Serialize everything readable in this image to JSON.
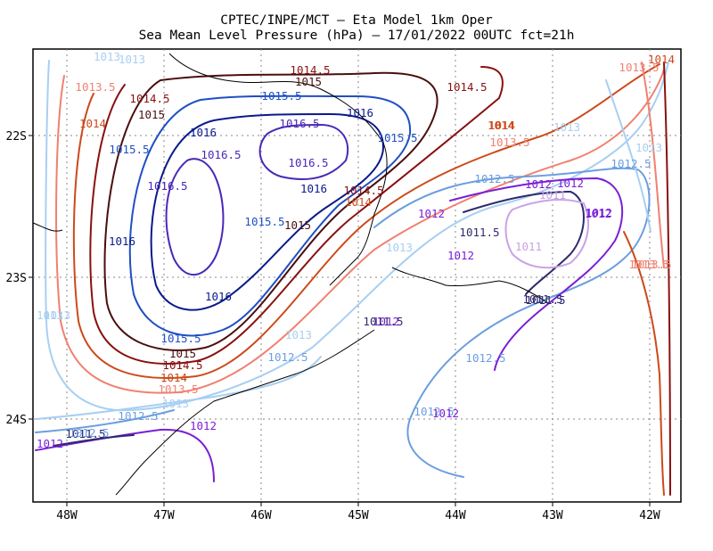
{
  "title_line1": "CPTEC/INPE/MCT –  Eta Model 1km Oper",
  "title_line2": "Sea Mean Level Pressure (hPa) – 17/01/2022 00UTC fct=21h",
  "x_ticks": [
    "48W",
    "47W",
    "46W",
    "45W",
    "44W",
    "43W",
    "42W"
  ],
  "y_ticks": [
    "22S",
    "23S",
    "24S"
  ],
  "colors": {
    "1011": "#c9a3e6",
    "1011.5": "#2e2a6e",
    "1012": "#7a1fd6",
    "1012.5": "#6b9ee0",
    "1013": "#a8cff2",
    "1013.5": "#f08070",
    "1014": "#cc4a1a",
    "1014.5": "#8a1010",
    "1015": "#4a0f0f",
    "1015.5": "#1f4fc4",
    "1016": "#0a1a8a",
    "1016.5": "#4a28b8",
    "coast": "#000000",
    "grid": "#888888"
  },
  "contour_labels": [
    {
      "text": "1013",
      "level": "1013"
    },
    {
      "text": "1014.5",
      "level": "1014.5"
    },
    {
      "text": "1015",
      "level": "1015"
    },
    {
      "text": "1013.5",
      "level": "1013.5"
    },
    {
      "text": "1014.5",
      "level": "1014.5"
    },
    {
      "text": "1015.5",
      "level": "1015.5"
    },
    {
      "text": "1015",
      "level": "1015"
    },
    {
      "text": "1016",
      "level": "1016"
    },
    {
      "text": "1014",
      "level": "1014"
    },
    {
      "text": "1016.5",
      "level": "1016.5"
    },
    {
      "text": "1016",
      "level": "1016"
    },
    {
      "text": "1015.5",
      "level": "1015.5"
    },
    {
      "text": "1015.5",
      "level": "1015.5"
    },
    {
      "text": "1016.5",
      "level": "1016.5"
    },
    {
      "text": "1016.5",
      "level": "1016.5"
    },
    {
      "text": "1016",
      "level": "1016"
    },
    {
      "text": "1014.5",
      "level": "1014.5"
    },
    {
      "text": "1014",
      "level": "1014"
    },
    {
      "text": "1015.5",
      "level": "1015.5"
    },
    {
      "text": "1015",
      "level": "1015"
    },
    {
      "text": "1016.5",
      "level": "1016.5"
    },
    {
      "text": "1016",
      "level": "1016"
    },
    {
      "text": "1016",
      "level": "1016"
    },
    {
      "text": "1015.5",
      "level": "1015.5"
    },
    {
      "text": "1015",
      "level": "1015"
    },
    {
      "text": "1014.5",
      "level": "1014.5"
    },
    {
      "text": "1014",
      "level": "1014"
    },
    {
      "text": "1013.5",
      "level": "1013.5"
    },
    {
      "text": "1013",
      "level": "1013"
    },
    {
      "text": "1012.5",
      "level": "1012.5"
    },
    {
      "text": "1012",
      "level": "1012"
    },
    {
      "text": "1011.5",
      "level": "1011.5"
    },
    {
      "text": "1013",
      "level": "1013"
    },
    {
      "text": "1012",
      "level": "1012"
    },
    {
      "text": "1013.5",
      "level": "1013.5"
    },
    {
      "text": "1013",
      "level": "1013"
    },
    {
      "text": "1012.5",
      "level": "1012.5"
    },
    {
      "text": "1012",
      "level": "1012"
    },
    {
      "text": "1014.5",
      "level": "1014.5"
    },
    {
      "text": "1014",
      "level": "1014"
    },
    {
      "text": "1013.5",
      "level": "1013.5"
    },
    {
      "text": "1013",
      "level": "1013"
    },
    {
      "text": "1012.5",
      "level": "1012.5"
    },
    {
      "text": "1012",
      "level": "1012"
    },
    {
      "text": "1011.5",
      "level": "1011.5"
    },
    {
      "text": "1011",
      "level": "1011"
    },
    {
      "text": "1012",
      "level": "1012"
    },
    {
      "text": "1011.5",
      "level": "1011.5"
    },
    {
      "text": "1011",
      "level": "1011"
    },
    {
      "text": "1012",
      "level": "1012"
    },
    {
      "text": "1012",
      "level": "1012"
    },
    {
      "text": "1012",
      "level": "1012"
    },
    {
      "text": "1011.5",
      "level": "1011.5"
    },
    {
      "text": "1013.5",
      "level": "1013.5"
    },
    {
      "text": "1013",
      "level": "1013"
    },
    {
      "text": "1012.5",
      "level": "1012.5"
    },
    {
      "text": "1014",
      "level": "1014"
    },
    {
      "text": "1014",
      "level": "1014"
    },
    {
      "text": "1013.5",
      "level": "1013.5"
    },
    {
      "text": "1013",
      "level": "1013"
    },
    {
      "text": "1013",
      "level": "1013"
    },
    {
      "text": "1012.5",
      "level": "1012.5"
    },
    {
      "text": "1013",
      "level": "1013"
    },
    {
      "text": "1012.5",
      "level": "1012.5"
    },
    {
      "text": "1011.5",
      "level": "1011.5"
    },
    {
      "text": "1012",
      "level": "1012"
    },
    {
      "text": "1012",
      "level": "1012"
    },
    {
      "text": "1012.5",
      "level": "1012.5"
    }
  ]
}
